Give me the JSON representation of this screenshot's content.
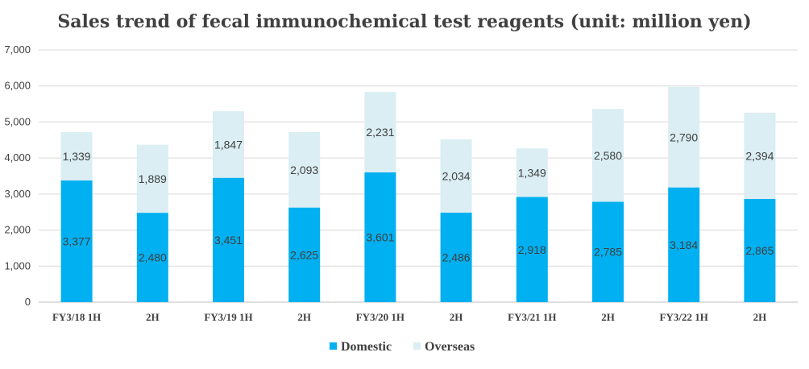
{
  "chart_data": {
    "type": "bar",
    "stacked": true,
    "title": "Sales trend of fecal immunochemical test reagents  (unit: million yen)",
    "categories": [
      "FY3/18 1H",
      "2H",
      "FY3/19 1H",
      "2H",
      "FY3/20 1H",
      "2H",
      "FY3/21 1H",
      "2H",
      "FY3/22 1H",
      "2H"
    ],
    "series": [
      {
        "name": "Domestic",
        "color": "#00b0f0",
        "values": [
          3377,
          2480,
          3451,
          2625,
          3601,
          2486,
          2918,
          2785,
          3184,
          2865
        ],
        "labels": [
          "3,377",
          "2,480",
          "3,451",
          "2,625",
          "3,601",
          "2,486",
          "2,918",
          "2,785",
          "3,184",
          "2,865"
        ]
      },
      {
        "name": "Overseas",
        "color": "#daeef3",
        "values": [
          1339,
          1889,
          1847,
          2093,
          2231,
          2034,
          1349,
          2580,
          2790,
          2394
        ],
        "labels": [
          "1,339",
          "1,889",
          "1,847",
          "2,093",
          "2,231",
          "2,034",
          "1,349",
          "2,580",
          "2,790",
          "2,394"
        ]
      }
    ],
    "yticks": [
      "0",
      "1,000",
      "2,000",
      "3,000",
      "4,000",
      "5,000",
      "6,000",
      "7,000"
    ],
    "ylim": [
      0,
      7000
    ],
    "grid": true,
    "legend": "bottom"
  }
}
